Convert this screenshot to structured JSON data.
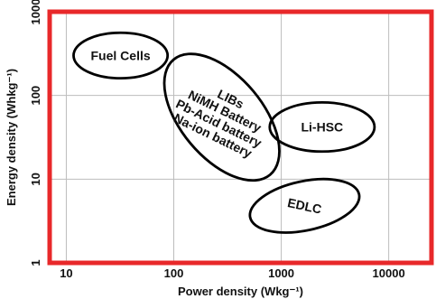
{
  "chart_data": {
    "type": "scatter",
    "title": "",
    "xlabel": "Power density (Wkg⁻¹)",
    "ylabel": "Energy density (Whkg⁻¹)",
    "x_scale": "log",
    "y_scale": "log",
    "xlim": [
      7,
      25000
    ],
    "ylim": [
      1,
      1000
    ],
    "x_ticks": [
      "10",
      "100",
      "1000",
      "10000"
    ],
    "y_ticks": [
      "1",
      "10",
      "100",
      "1000"
    ],
    "grid": true,
    "frame_color": "#e8282a",
    "regions": [
      {
        "name": "Fuel Cells",
        "labels": [
          "Fuel Cells"
        ],
        "center": [
          32,
          300
        ],
        "x_range": [
          12,
          90
        ],
        "y_range": [
          160,
          560
        ],
        "angle": 0,
        "text_rotation": 0
      },
      {
        "name": "LIBs / NiMH Battery / Pb-Acid battery / Na-ion battery",
        "labels": [
          "LIBs",
          "NiMH Battery",
          "Pb-Acid battery",
          "Na-ion battery"
        ],
        "center": [
          280,
          55
        ],
        "x_range": [
          85,
          1000
        ],
        "y_range": [
          8,
          260
        ],
        "angle": 40,
        "text_rotation": 26
      },
      {
        "name": "Li-HSC",
        "labels": [
          "Li-HSC"
        ],
        "center": [
          2400,
          42
        ],
        "x_range": [
          900,
          8500
        ],
        "y_range": [
          22,
          85
        ],
        "angle": 0,
        "text_rotation": 0
      },
      {
        "name": "EDLC",
        "labels": [
          "EDLC"
        ],
        "center": [
          1650,
          4.8
        ],
        "x_range": [
          480,
          5000
        ],
        "y_range": [
          2.3,
          10
        ],
        "angle": 12,
        "text_rotation": 12
      }
    ]
  }
}
